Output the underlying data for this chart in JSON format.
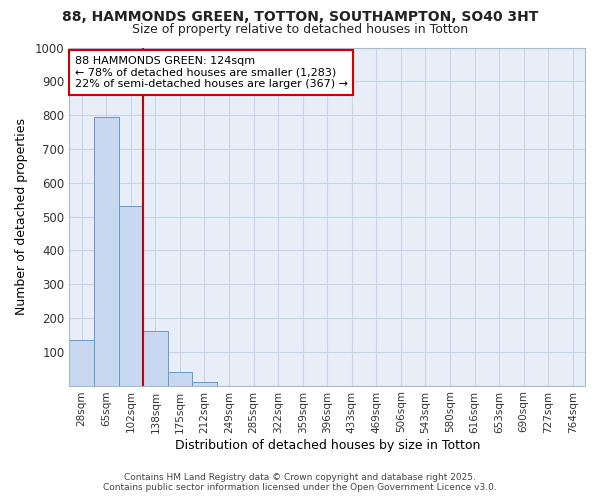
{
  "title_line1": "88, HAMMONDS GREEN, TOTTON, SOUTHAMPTON, SO40 3HT",
  "title_line2": "Size of property relative to detached houses in Totton",
  "xlabel": "Distribution of detached houses by size in Totton",
  "ylabel": "Number of detached properties",
  "categories": [
    "28sqm",
    "65sqm",
    "102sqm",
    "138sqm",
    "175sqm",
    "212sqm",
    "249sqm",
    "285sqm",
    "322sqm",
    "359sqm",
    "396sqm",
    "433sqm",
    "469sqm",
    "506sqm",
    "543sqm",
    "580sqm",
    "616sqm",
    "653sqm",
    "690sqm",
    "727sqm",
    "764sqm"
  ],
  "values": [
    135,
    795,
    530,
    162,
    40,
    12,
    0,
    0,
    0,
    0,
    0,
    0,
    0,
    0,
    0,
    0,
    0,
    0,
    0,
    0,
    0
  ],
  "bar_color": "#c8d8f0",
  "bar_edge_color": "#6699cc",
  "plot_bg_color": "#e8eef8",
  "fig_bg_color": "#ffffff",
  "grid_color": "#c8d4e8",
  "vline_color": "#cc0000",
  "vline_x_position": 2.5,
  "annotation_text_line1": "88 HAMMONDS GREEN: 124sqm",
  "annotation_text_line2": "← 78% of detached houses are smaller (1,283)",
  "annotation_text_line3": "22% of semi-detached houses are larger (367) →",
  "annotation_box_color": "#ffffff",
  "annotation_border_color": "#cc0000",
  "ylim": [
    0,
    1000
  ],
  "yticks": [
    0,
    100,
    200,
    300,
    400,
    500,
    600,
    700,
    800,
    900,
    1000
  ],
  "footer_line1": "Contains HM Land Registry data © Crown copyright and database right 2025.",
  "footer_line2": "Contains public sector information licensed under the Open Government Licence v3.0."
}
